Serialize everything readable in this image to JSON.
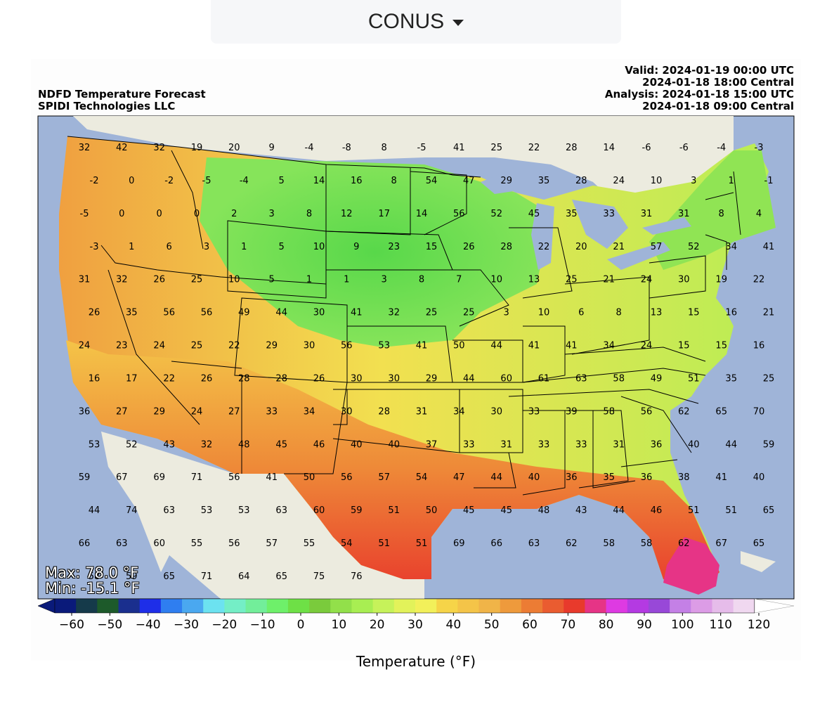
{
  "region_selector": {
    "label": "CONUS"
  },
  "map": {
    "title_lines": [
      "NDFD Temperature Forecast",
      "SPIDI Technologies LLC"
    ],
    "valid_lines": [
      "Valid: 2024-01-19 00:00 UTC",
      "2024-01-18 18:00 Central",
      "Analysis: 2024-01-18 15:00 UTC",
      "2024-01-18 09:00 Central"
    ],
    "max_text": "Max: 78.0 °F",
    "min_text": "Min: -15.1 °F",
    "colors": {
      "ocean": "#9fb4d8",
      "land_outside": "#ecebdf",
      "border": "#000000"
    },
    "point_values": [
      32,
      42,
      32,
      19,
      20,
      9,
      -4,
      -8,
      8,
      -5,
      41,
      25,
      22,
      28,
      14,
      -6,
      -6,
      -4,
      -3,
      -2,
      0,
      -2,
      -5,
      -4,
      5,
      14,
      16,
      8,
      54,
      47,
      29,
      35,
      28,
      24,
      10,
      3,
      1,
      -1,
      -5,
      0,
      0,
      0,
      2,
      3,
      8,
      12,
      17,
      14,
      56,
      52,
      45,
      35,
      33,
      31,
      31,
      8,
      4,
      -3,
      1,
      6,
      3,
      1,
      5,
      10,
      9,
      23,
      15,
      26,
      28,
      22,
      20,
      21,
      57,
      52,
      34,
      41,
      31,
      32,
      26,
      25,
      10,
      5,
      1,
      1,
      3,
      8,
      7,
      10,
      13,
      25,
      21,
      24,
      30,
      19,
      22,
      26,
      35,
      56,
      56,
      49,
      44,
      30,
      41,
      32,
      25,
      25,
      3,
      10,
      6,
      8,
      13,
      15,
      16,
      21,
      24,
      23,
      24,
      25,
      22,
      29,
      30,
      56,
      53,
      41,
      50,
      44,
      41,
      41,
      34,
      24,
      15,
      15,
      16,
      16,
      17,
      22,
      26,
      28,
      28,
      26,
      30,
      30,
      29,
      44,
      60,
      61,
      63,
      58,
      49,
      51,
      35,
      25,
      36,
      27,
      29,
      24,
      27,
      33,
      34,
      30,
      28,
      31,
      34,
      30,
      33,
      39,
      58,
      56,
      62,
      65,
      70,
      53,
      52,
      43,
      32,
      48,
      45,
      46,
      40,
      40,
      37,
      33,
      31,
      33,
      33,
      31,
      36,
      40,
      44,
      59,
      59,
      67,
      69,
      71,
      56,
      41,
      50,
      56,
      57,
      54,
      47,
      44,
      40,
      36,
      35,
      36,
      38,
      41,
      40,
      44,
      74,
      63,
      53,
      53,
      63,
      60,
      59,
      51,
      50,
      45,
      45,
      48,
      43,
      44,
      46,
      51,
      51,
      65,
      66,
      63,
      60,
      55,
      56,
      57,
      55,
      54,
      51,
      51,
      69,
      66,
      63,
      62,
      58,
      58,
      62,
      67,
      65,
      58,
      59,
      65,
      71,
      64,
      65,
      75,
      76
    ],
    "colorbar": {
      "tick_labels": [
        "−60",
        "−50",
        "−40",
        "−30",
        "−20",
        "−10",
        "0",
        "10",
        "20",
        "30",
        "40",
        "50",
        "60",
        "70",
        "80",
        "90",
        "100",
        "110",
        "120"
      ],
      "label": "Temperature (°F)",
      "colors": [
        "#0a1a7a",
        "#153a4a",
        "#1d5a2a",
        "#1a2f8e",
        "#1e2ee8",
        "#2f7ef0",
        "#4aa8f0",
        "#6ce2f0",
        "#74eec6",
        "#72ee9a",
        "#6ef06a",
        "#6ee046",
        "#7acb3c",
        "#92e04a",
        "#a8ee52",
        "#c6f25a",
        "#e2f25a",
        "#f2f05a",
        "#f6d448",
        "#f4c448",
        "#f0b448",
        "#ee9a3c",
        "#ec7c34",
        "#ea5c30",
        "#e83a2c",
        "#e63486",
        "#de3ae2",
        "#b43ae2",
        "#9848d8",
        "#c480e6",
        "#dc9ce6",
        "#e6bcea",
        "#f0d8f0",
        "#ffffff"
      ]
    }
  }
}
